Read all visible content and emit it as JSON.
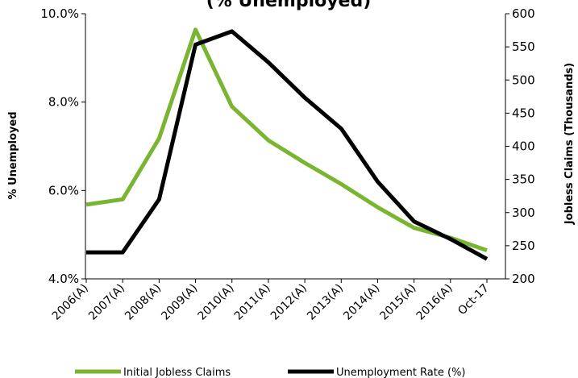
{
  "chart_data": {
    "type": "line",
    "title": "(% Unemployed)",
    "categories": [
      "2006(A)",
      "2007(A)",
      "2008(A)",
      "2009(A)",
      "2010(A)",
      "2011(A)",
      "2012(A)",
      "2013(A)",
      "2014(A)",
      "2015(A)",
      "2016(A)",
      "Oct-17"
    ],
    "ylabel_left": "% Unemployed",
    "ylabel_right": "Jobless Claims (Thousands)",
    "ylim_left": [
      4.0,
      10.0
    ],
    "ylim_right": [
      200,
      600
    ],
    "yticks_left": [
      "4.0%",
      "6.0%",
      "8.0%",
      "10.0%"
    ],
    "yticks_right": [
      "200",
      "250",
      "300",
      "350",
      "400",
      "450",
      "500",
      "550",
      "600"
    ],
    "grid": false,
    "legend_position": "bottom",
    "series": [
      {
        "name": "Initial Jobless Claims",
        "axis": "right",
        "color": "#7ab532",
        "values": [
          312,
          320,
          412,
          576,
          460,
          409,
          375,
          343,
          308,
          277,
          262,
          243
        ]
      },
      {
        "name": "Unemployment Rate (%)",
        "axis": "left",
        "color": "#000000",
        "values": [
          4.6,
          4.6,
          5.8,
          9.3,
          9.6,
          8.9,
          8.1,
          7.4,
          6.2,
          5.3,
          4.9,
          4.45
        ]
      }
    ]
  }
}
